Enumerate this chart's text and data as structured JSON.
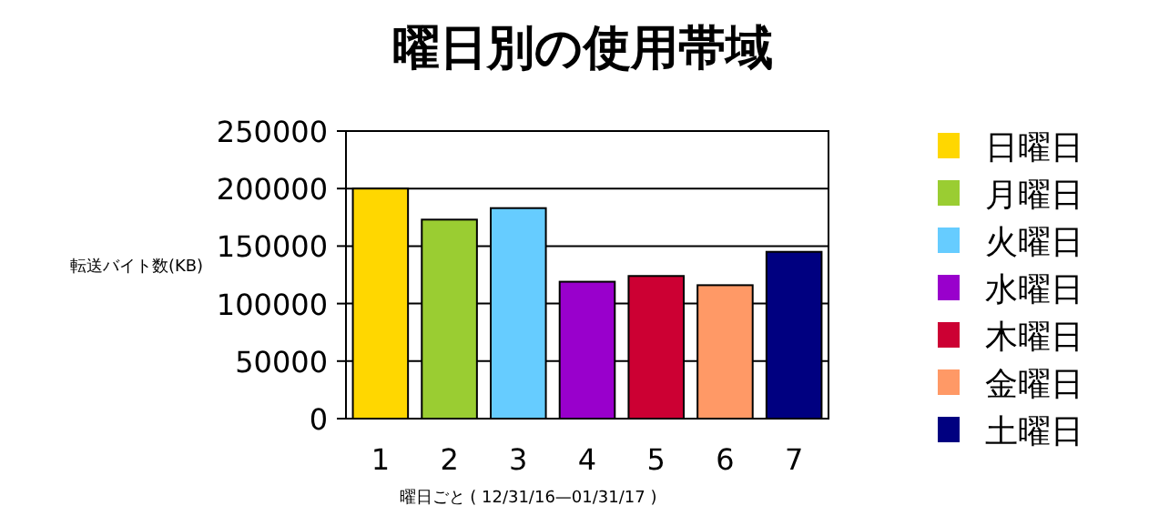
{
  "chart_data": {
    "type": "bar",
    "title": "曜日別の使用帯域",
    "xlabel": "曜日ごと ( 12/31/16—01/31/17 )",
    "ylabel": "転送バイト数(KB)",
    "categories": [
      "1",
      "2",
      "3",
      "4",
      "5",
      "6",
      "7"
    ],
    "stacked": true,
    "ylim": [
      0,
      250000
    ],
    "yticks": [
      0,
      50000,
      100000,
      150000,
      200000,
      250000
    ],
    "grid": "y",
    "legend": "right",
    "series": [
      {
        "name": "日曜日",
        "color": "#ffd700",
        "values": [
          200000,
          null,
          null,
          null,
          null,
          null,
          null
        ]
      },
      {
        "name": "月曜日",
        "color": "#9acd32",
        "values": [
          null,
          173000,
          null,
          null,
          null,
          null,
          null
        ]
      },
      {
        "name": "火曜日",
        "color": "#66ccff",
        "values": [
          null,
          null,
          183000,
          null,
          null,
          null,
          null
        ]
      },
      {
        "name": "水曜日",
        "color": "#9900cc",
        "values": [
          null,
          null,
          null,
          119000,
          null,
          null,
          null
        ]
      },
      {
        "name": "木曜日",
        "color": "#cc0033",
        "values": [
          null,
          null,
          null,
          null,
          124000,
          null,
          null
        ]
      },
      {
        "name": "金曜日",
        "color": "#ff9966",
        "values": [
          null,
          null,
          null,
          null,
          null,
          116000,
          null
        ]
      },
      {
        "name": "土曜日",
        "color": "#000080",
        "values": [
          null,
          null,
          null,
          null,
          null,
          null,
          145000
        ]
      }
    ]
  }
}
